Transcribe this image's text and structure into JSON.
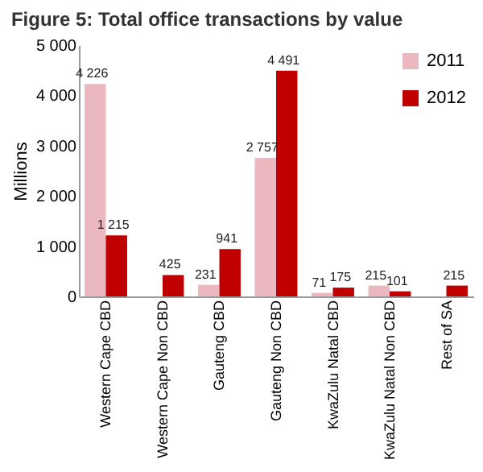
{
  "chart_data": {
    "type": "bar",
    "title": "Figure 5: Total office transactions by value",
    "ylabel": "Millions",
    "categories": [
      "Western Cape CBD",
      "Western Cape  Non CBD",
      "Gauteng  CBD",
      "Gauteng  Non CBD",
      "KwaZulu Natal  CBD",
      "KwaZulu Natal Non CBD",
      "Rest of SA"
    ],
    "series": [
      {
        "name": "2011",
        "color": "#eab8be",
        "values": [
          4226,
          null,
          231,
          2757,
          71,
          215,
          null
        ],
        "value_labels": [
          "4 226",
          null,
          "231",
          "2 757",
          "71",
          "215",
          null
        ]
      },
      {
        "name": "2012",
        "color": "#c00000",
        "values": [
          1215,
          425,
          941,
          4491,
          175,
          101,
          215
        ],
        "value_labels": [
          "1 215",
          "425",
          "941",
          "4 491",
          "175",
          "101",
          "215"
        ]
      }
    ],
    "ylim": [
      0,
      5000
    ],
    "yticks": [
      {
        "value": 0,
        "label": "0"
      },
      {
        "value": 1000,
        "label": "1 000"
      },
      {
        "value": 2000,
        "label": "2 000"
      },
      {
        "value": 3000,
        "label": "3 000"
      },
      {
        "value": 4000,
        "label": "4 000"
      },
      {
        "value": 5000,
        "label": "5 000"
      }
    ],
    "grid": false,
    "legend": "top right"
  }
}
